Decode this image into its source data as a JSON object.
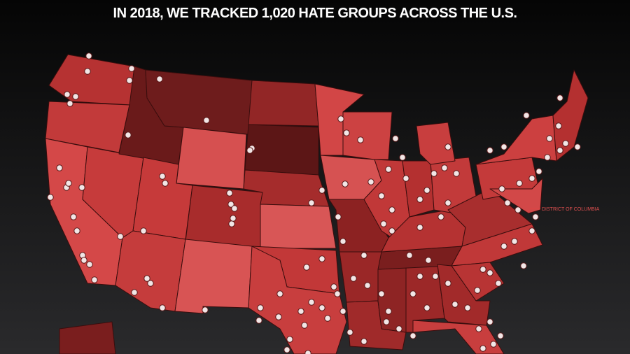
{
  "title": "IN 2018, WE TRACKED 1,020 HATE GROUPS ACROSS THE U.S.",
  "dc_label": "DISTRICT OF COLUMBIA"
}
